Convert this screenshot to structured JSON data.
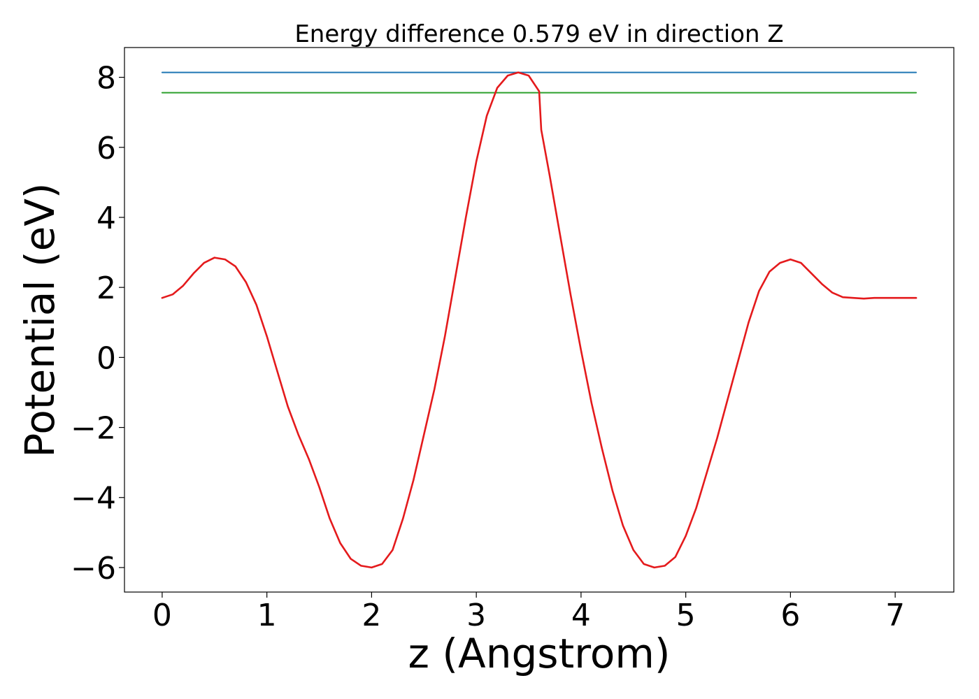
{
  "chart_data": {
    "type": "line",
    "title": "Energy difference 0.579 eV in direction Z",
    "xlabel": "z (Angstrom)",
    "ylabel": "Potential (eV)",
    "xlim": [
      -0.36,
      7.56
    ],
    "ylim": [
      -6.7,
      8.85
    ],
    "x_ticks": [
      0,
      1,
      2,
      3,
      4,
      5,
      6,
      7
    ],
    "y_ticks": [
      -6,
      -4,
      -2,
      0,
      2,
      4,
      6,
      8
    ],
    "x_tick_labels": [
      "0",
      "1",
      "2",
      "3",
      "4",
      "5",
      "6",
      "7"
    ],
    "y_tick_labels": [
      "−6",
      "−4",
      "−2",
      "0",
      "2",
      "4",
      "6",
      "8"
    ],
    "grid": false,
    "legend": "none",
    "series": [
      {
        "color": "#1f77b4",
        "style": "horizontal",
        "x": [
          0,
          7.2
        ],
        "y": [
          8.14,
          8.14
        ]
      },
      {
        "color": "#2ca02c",
        "style": "horizontal",
        "x": [
          0,
          7.2
        ],
        "y": [
          7.56,
          7.56
        ]
      },
      {
        "color": "#e41a1c",
        "style": "curve",
        "x": [
          0,
          0.1,
          0.2,
          0.3,
          0.4,
          0.5,
          0.6,
          0.7,
          0.8,
          0.9,
          1.0,
          1.1,
          1.2,
          1.3,
          1.4,
          1.5,
          1.6,
          1.7,
          1.8,
          1.9,
          2.0,
          2.1,
          2.2,
          2.3,
          2.4,
          2.5,
          2.6,
          2.7,
          2.8,
          2.9,
          3.0,
          3.1,
          3.2,
          3.3,
          3.4,
          3.5,
          3.6,
          3.62,
          3.7,
          3.8,
          3.9,
          4.0,
          4.1,
          4.2,
          4.3,
          4.4,
          4.5,
          4.6,
          4.7,
          4.8,
          4.9,
          5.0,
          5.1,
          5.2,
          5.3,
          5.4,
          5.5,
          5.6,
          5.7,
          5.8,
          5.9,
          6.0,
          6.1,
          6.2,
          6.3,
          6.4,
          6.5,
          6.6,
          6.7,
          6.8,
          6.9,
          7.0,
          7.1,
          7.2
        ],
        "y": [
          1.7,
          1.8,
          2.05,
          2.4,
          2.7,
          2.85,
          2.8,
          2.6,
          2.15,
          1.5,
          0.6,
          -0.4,
          -1.4,
          -2.2,
          -2.9,
          -3.7,
          -4.6,
          -5.3,
          -5.75,
          -5.95,
          -6.0,
          -5.9,
          -5.5,
          -4.6,
          -3.5,
          -2.2,
          -0.9,
          0.6,
          2.3,
          4.0,
          5.6,
          6.9,
          7.7,
          8.05,
          8.14,
          8.05,
          7.6,
          6.5,
          5.2,
          3.5,
          1.8,
          0.2,
          -1.3,
          -2.6,
          -3.8,
          -4.8,
          -5.5,
          -5.9,
          -6.0,
          -5.95,
          -5.7,
          -5.1,
          -4.3,
          -3.3,
          -2.3,
          -1.2,
          -0.1,
          1.0,
          1.9,
          2.45,
          2.7,
          2.8,
          2.7,
          2.4,
          2.1,
          1.85,
          1.72,
          1.7,
          1.68,
          1.7,
          1.7,
          1.7,
          1.7,
          1.7
        ]
      }
    ]
  }
}
